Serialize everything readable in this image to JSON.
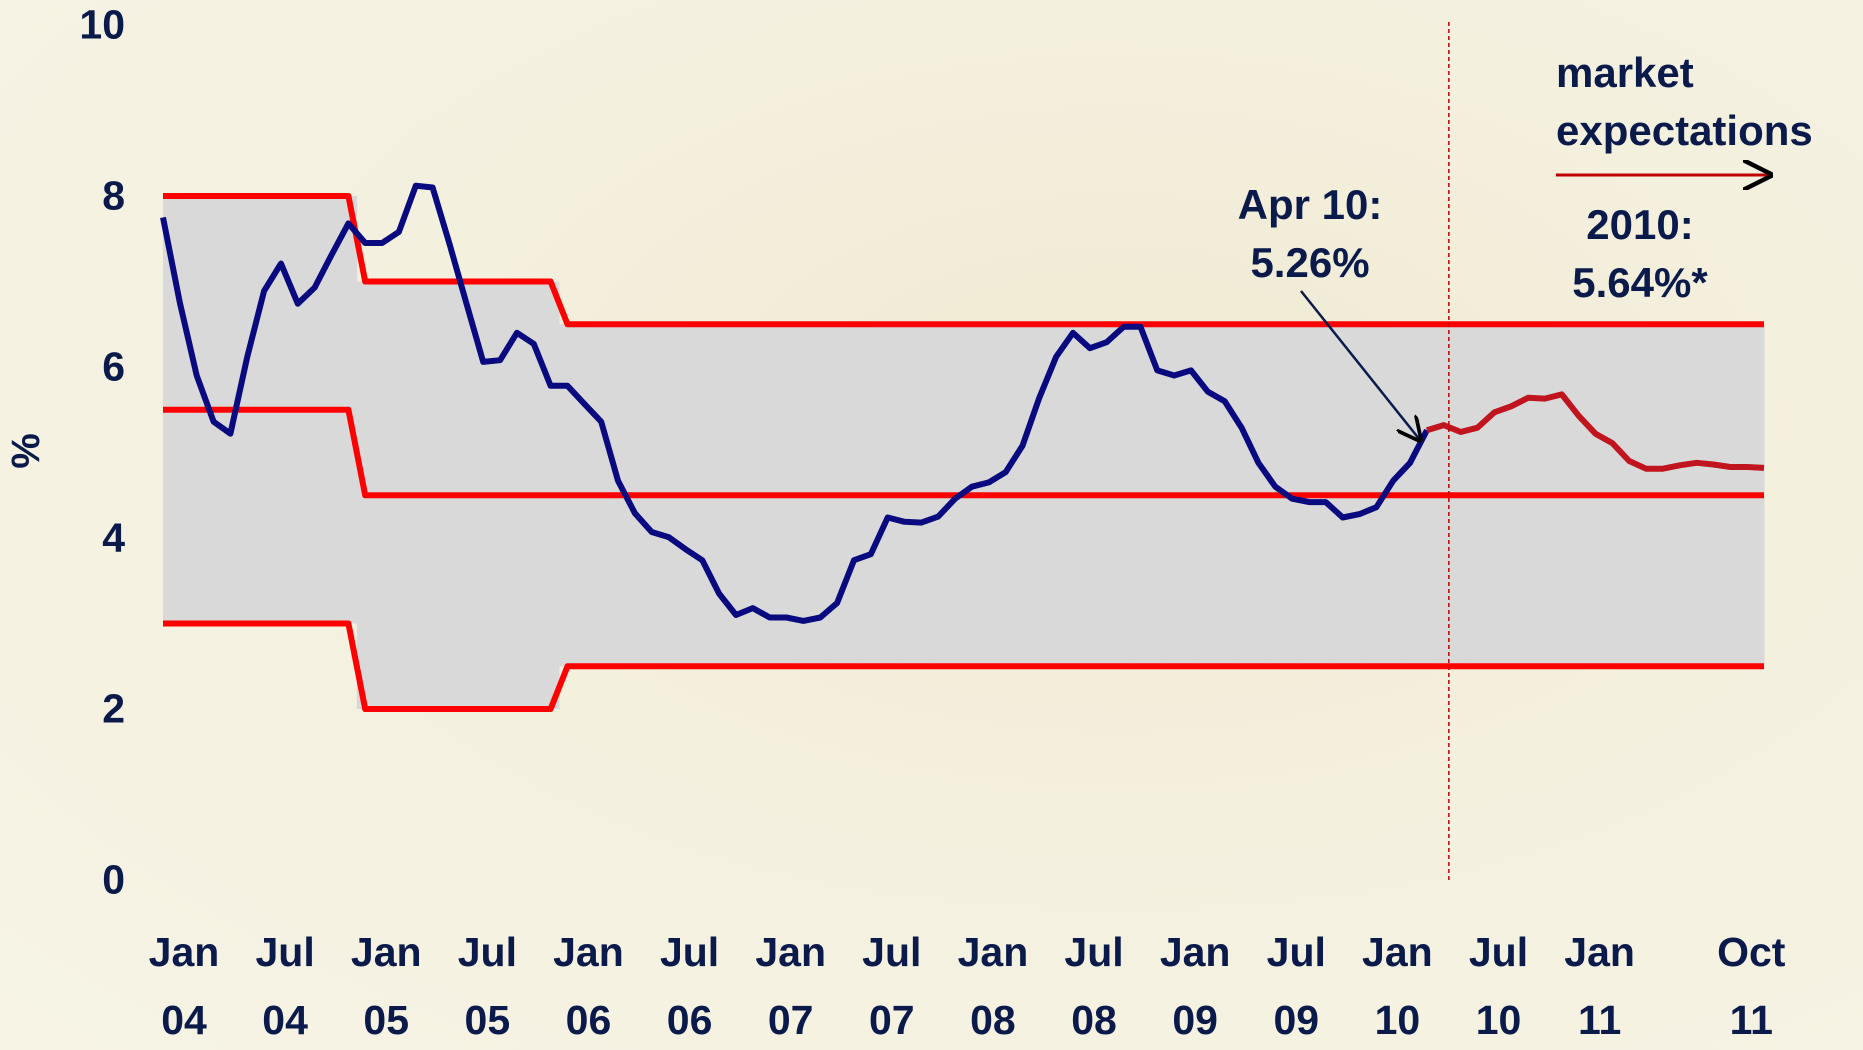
{
  "chart_data": {
    "type": "line",
    "ylabel": "%",
    "ylim": [
      0,
      10
    ],
    "yticks": [
      0,
      2,
      4,
      6,
      8,
      10
    ],
    "categories": [
      "Jan\n04",
      null,
      null,
      null,
      null,
      null,
      "Jul\n04",
      null,
      null,
      null,
      null,
      null,
      "Jan\n05",
      null,
      null,
      null,
      null,
      null,
      "Jul\n05",
      null,
      null,
      null,
      null,
      null,
      "Jan\n06",
      null,
      null,
      null,
      null,
      null,
      "Jul\n06",
      null,
      null,
      null,
      null,
      null,
      "Jan\n07",
      null,
      null,
      null,
      null,
      null,
      "Jul\n07",
      null,
      null,
      null,
      null,
      null,
      "Jan\n08",
      null,
      null,
      null,
      null,
      null,
      "Jul\n08",
      null,
      null,
      null,
      null,
      null,
      "Jan\n09",
      null,
      null,
      null,
      null,
      null,
      "Jul\n09",
      null,
      null,
      null,
      null,
      null,
      "Jan\n10",
      null,
      null,
      null,
      null,
      null,
      "Jul\n10",
      null,
      null,
      null,
      null,
      null,
      "Jan\n11",
      null,
      null,
      null,
      null,
      null,
      null,
      null,
      null,
      "Oct\n11",
      null,
      null
    ],
    "band_fill": "#d9d9d9",
    "series": [
      {
        "color": "#0a0a80",
        "values": [
          7.75,
          6.75,
          5.9,
          5.36,
          5.22,
          6.12,
          6.89,
          7.21,
          6.74,
          6.93,
          7.31,
          7.68,
          7.45,
          7.45,
          7.58,
          8.12,
          8.1,
          7.44,
          6.75,
          6.06,
          6.08,
          6.4,
          6.27,
          5.78,
          5.78,
          5.57,
          5.36,
          4.67,
          4.29,
          4.07,
          4.01,
          3.87,
          3.74,
          3.35,
          3.1,
          3.18,
          3.07,
          3.07,
          3.03,
          3.07,
          3.24,
          3.74,
          3.81,
          4.24,
          4.19,
          4.18,
          4.25,
          4.46,
          4.6,
          4.65,
          4.77,
          5.08,
          5.64,
          6.12,
          6.4,
          6.22,
          6.29,
          6.47,
          6.47,
          5.96,
          5.9,
          5.96,
          5.71,
          5.6,
          5.29,
          4.88,
          4.6,
          4.46,
          4.42,
          4.42,
          4.24,
          4.28,
          4.36,
          4.67,
          4.88,
          5.26,
          null,
          null,
          null,
          null,
          null,
          null,
          null,
          null,
          null,
          null,
          null,
          null,
          null,
          null,
          null,
          null,
          null,
          null,
          null,
          null
        ]
      },
      {
        "color": "#c0141e",
        "values": [
          null,
          null,
          null,
          null,
          null,
          null,
          null,
          null,
          null,
          null,
          null,
          null,
          null,
          null,
          null,
          null,
          null,
          null,
          null,
          null,
          null,
          null,
          null,
          null,
          null,
          null,
          null,
          null,
          null,
          null,
          null,
          null,
          null,
          null,
          null,
          null,
          null,
          null,
          null,
          null,
          null,
          null,
          null,
          null,
          null,
          null,
          null,
          null,
          null,
          null,
          null,
          null,
          null,
          null,
          null,
          null,
          null,
          null,
          null,
          null,
          null,
          null,
          null,
          null,
          null,
          null,
          null,
          null,
          null,
          null,
          null,
          null,
          null,
          null,
          null,
          5.26,
          5.32,
          5.24,
          5.29,
          5.47,
          5.54,
          5.64,
          5.63,
          5.68,
          5.43,
          5.22,
          5.11,
          4.9,
          4.81,
          4.81,
          4.85,
          4.88,
          4.86,
          4.83,
          4.83,
          4.82
        ]
      },
      {
        "color": "#ff0000",
        "values": [
          8,
          8,
          8,
          8,
          8,
          8,
          8,
          8,
          8,
          8,
          8,
          8,
          7,
          7,
          7,
          7,
          7,
          7,
          7,
          7,
          7,
          7,
          7,
          7,
          6.5,
          6.5,
          6.5,
          6.5,
          6.5,
          6.5,
          6.5,
          6.5,
          6.5,
          6.5,
          6.5,
          6.5,
          6.5,
          6.5,
          6.5,
          6.5,
          6.5,
          6.5,
          6.5,
          6.5,
          6.5,
          6.5,
          6.5,
          6.5,
          6.5,
          6.5,
          6.5,
          6.5,
          6.5,
          6.5,
          6.5,
          6.5,
          6.5,
          6.5,
          6.5,
          6.5,
          6.5,
          6.5,
          6.5,
          6.5,
          6.5,
          6.5,
          6.5,
          6.5,
          6.5,
          6.5,
          6.5,
          6.5,
          6.5,
          6.5,
          6.5,
          6.5,
          6.5,
          6.5,
          6.5,
          6.5,
          6.5,
          6.5,
          6.5,
          6.5,
          6.5,
          6.5,
          6.5,
          6.5,
          6.5,
          6.5,
          6.5,
          6.5,
          6.5,
          6.5,
          6.5,
          6.5
        ]
      },
      {
        "color": "#ff0000",
        "values": [
          5.5,
          5.5,
          5.5,
          5.5,
          5.5,
          5.5,
          5.5,
          5.5,
          5.5,
          5.5,
          5.5,
          5.5,
          4.5,
          4.5,
          4.5,
          4.5,
          4.5,
          4.5,
          4.5,
          4.5,
          4.5,
          4.5,
          4.5,
          4.5,
          4.5,
          4.5,
          4.5,
          4.5,
          4.5,
          4.5,
          4.5,
          4.5,
          4.5,
          4.5,
          4.5,
          4.5,
          4.5,
          4.5,
          4.5,
          4.5,
          4.5,
          4.5,
          4.5,
          4.5,
          4.5,
          4.5,
          4.5,
          4.5,
          4.5,
          4.5,
          4.5,
          4.5,
          4.5,
          4.5,
          4.5,
          4.5,
          4.5,
          4.5,
          4.5,
          4.5,
          4.5,
          4.5,
          4.5,
          4.5,
          4.5,
          4.5,
          4.5,
          4.5,
          4.5,
          4.5,
          4.5,
          4.5,
          4.5,
          4.5,
          4.5,
          4.5,
          4.5,
          4.5,
          4.5,
          4.5,
          4.5,
          4.5,
          4.5,
          4.5,
          4.5,
          4.5,
          4.5,
          4.5,
          4.5,
          4.5,
          4.5,
          4.5,
          4.5,
          4.5,
          4.5,
          4.5
        ]
      },
      {
        "color": "#ff0000",
        "values": [
          3,
          3,
          3,
          3,
          3,
          3,
          3,
          3,
          3,
          3,
          3,
          3,
          2,
          2,
          2,
          2,
          2,
          2,
          2,
          2,
          2,
          2,
          2,
          2,
          2.5,
          2.5,
          2.5,
          2.5,
          2.5,
          2.5,
          2.5,
          2.5,
          2.5,
          2.5,
          2.5,
          2.5,
          2.5,
          2.5,
          2.5,
          2.5,
          2.5,
          2.5,
          2.5,
          2.5,
          2.5,
          2.5,
          2.5,
          2.5,
          2.5,
          2.5,
          2.5,
          2.5,
          2.5,
          2.5,
          2.5,
          2.5,
          2.5,
          2.5,
          2.5,
          2.5,
          2.5,
          2.5,
          2.5,
          2.5,
          2.5,
          2.5,
          2.5,
          2.5,
          2.5,
          2.5,
          2.5,
          2.5,
          2.5,
          2.5,
          2.5,
          2.5,
          2.5,
          2.5,
          2.5,
          2.5,
          2.5,
          2.5,
          2.5,
          2.5,
          2.5,
          2.5,
          2.5,
          2.5,
          2.5,
          2.5,
          2.5,
          2.5,
          2.5,
          2.5,
          2.5,
          2.5
        ]
      }
    ],
    "annotations": [
      {
        "text": "Apr 10:\n5.26%"
      },
      {
        "text": "market\nexpectations"
      },
      {
        "text": "2010:\n5.64%*"
      }
    ]
  }
}
